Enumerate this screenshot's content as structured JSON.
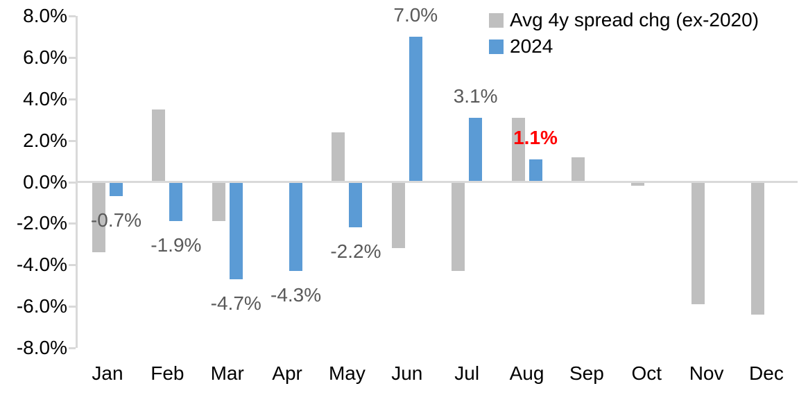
{
  "chart_data": {
    "type": "bar",
    "title": "",
    "xlabel": "",
    "ylabel": "",
    "categories": [
      "Jan",
      "Feb",
      "Mar",
      "Apr",
      "May",
      "Jun",
      "Jul",
      "Aug",
      "Sep",
      "Oct",
      "Nov",
      "Dec"
    ],
    "series": [
      {
        "name": "Avg 4y spread chg (ex-2020)",
        "color": "#BFBFBF",
        "values": [
          -3.4,
          3.5,
          -1.9,
          0.0,
          2.4,
          -3.2,
          -4.3,
          3.1,
          1.2,
          -0.2,
          -5.9,
          -6.4
        ]
      },
      {
        "name": "2024",
        "color": "#5B9BD5",
        "values": [
          -0.7,
          -1.9,
          -4.7,
          -4.3,
          -2.2,
          7.0,
          3.1,
          1.1,
          null,
          null,
          null,
          null
        ]
      }
    ],
    "data_labels": [
      {
        "category_index": 0,
        "series_index": 1,
        "text": "-0.7%",
        "color": "#595959",
        "bold": false
      },
      {
        "category_index": 1,
        "series_index": 1,
        "text": "-1.9%",
        "color": "#595959",
        "bold": false
      },
      {
        "category_index": 2,
        "series_index": 1,
        "text": "-4.7%",
        "color": "#595959",
        "bold": false
      },
      {
        "category_index": 3,
        "series_index": 1,
        "text": "-4.3%",
        "color": "#595959",
        "bold": false
      },
      {
        "category_index": 4,
        "series_index": 1,
        "text": "-2.2%",
        "color": "#595959",
        "bold": false
      },
      {
        "category_index": 5,
        "series_index": 1,
        "text": "7.0%",
        "color": "#595959",
        "bold": false
      },
      {
        "category_index": 6,
        "series_index": 1,
        "text": "3.1%",
        "color": "#595959",
        "bold": false
      },
      {
        "category_index": 7,
        "series_index": 1,
        "text": "1.1%",
        "color": "#FF0000",
        "bold": true
      }
    ],
    "y_axis": {
      "ticks": [
        "8.0%",
        "6.0%",
        "4.0%",
        "2.0%",
        "0.0%",
        "-2.0%",
        "-4.0%",
        "-6.0%",
        "-8.0%"
      ],
      "tick_values": [
        8,
        6,
        4,
        2,
        0,
        -2,
        -4,
        -6,
        -8
      ],
      "min": -8,
      "max": 8
    },
    "grid": false,
    "legend_position": "top-right",
    "axis_color": "#D9D9D9"
  }
}
